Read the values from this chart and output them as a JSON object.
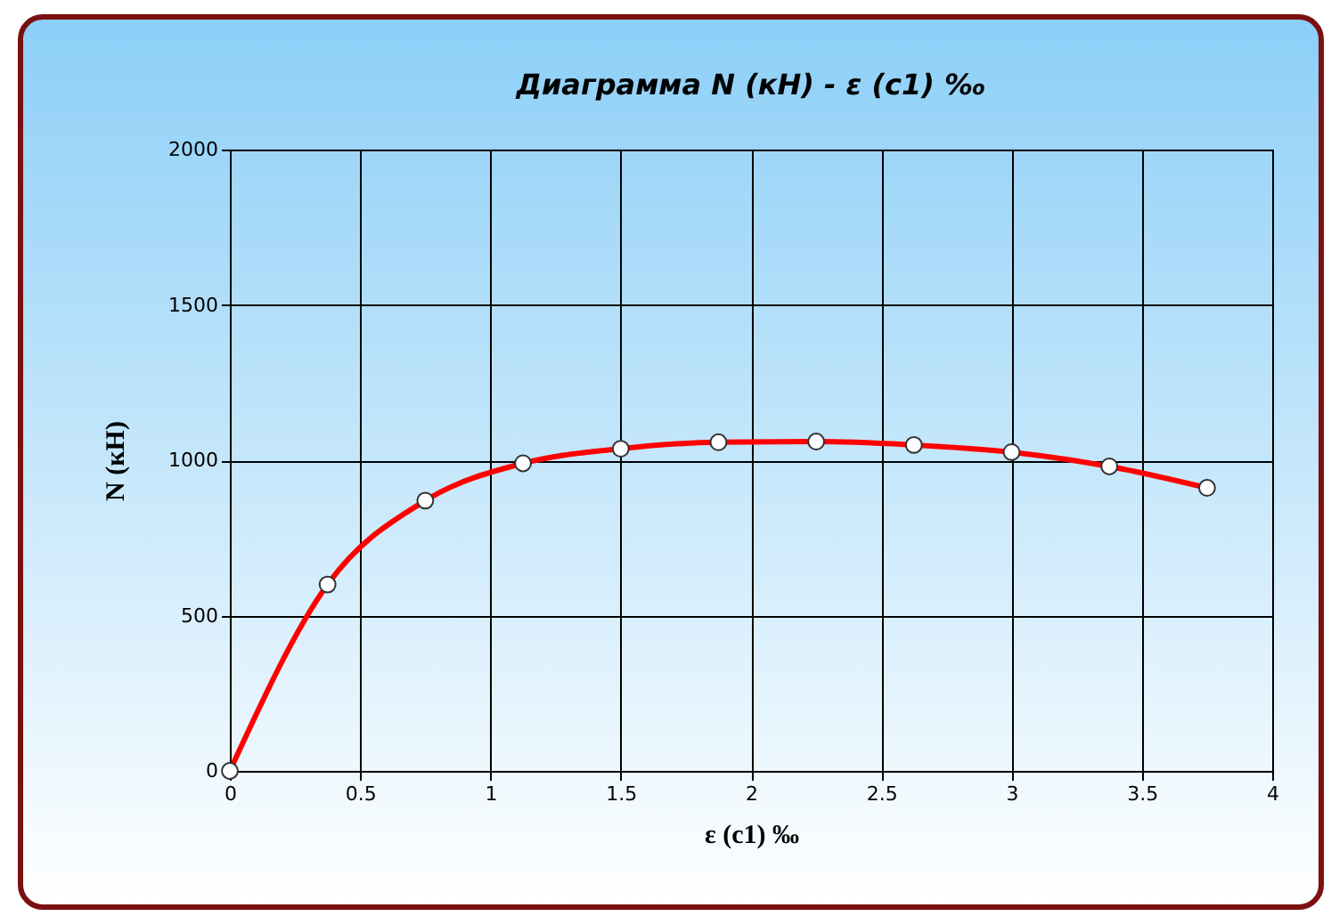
{
  "chart_data": {
    "type": "line",
    "title": "Диаграмма N (кН) - ε (c1) ‰",
    "xlabel": "ε (c1) ‰",
    "ylabel": "N (кН)",
    "x": [
      0,
      0.375,
      0.75,
      1.125,
      1.5,
      1.875,
      2.25,
      2.625,
      3.0,
      3.375,
      3.75
    ],
    "series": [
      {
        "color": "#ff0000",
        "values": [
          0,
          600,
          870,
          990,
          1037,
          1058,
          1060,
          1049,
          1026,
          980,
          911
        ]
      }
    ],
    "xlim": [
      0,
      4
    ],
    "xticks": [
      0,
      0.5,
      1,
      1.5,
      2,
      2.5,
      3,
      3.5,
      4
    ],
    "ylim": [
      0,
      2000
    ],
    "yticks": [
      0,
      500,
      1000,
      1500,
      2000
    ],
    "grid": true,
    "marker": "circle",
    "line_style": "solid",
    "legend": false
  }
}
